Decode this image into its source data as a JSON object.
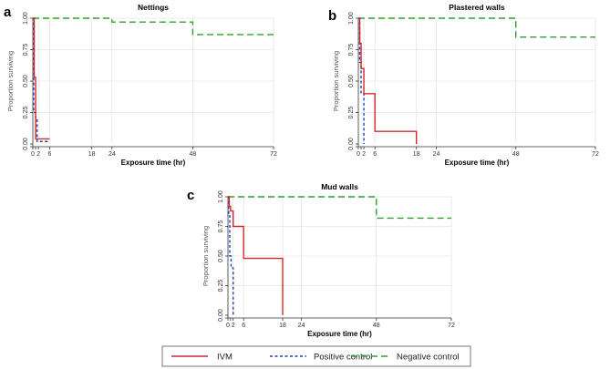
{
  "chart_data": [
    {
      "panel_letter": "a",
      "type": "line",
      "title": "Nettings",
      "xlabel": "Exposure time (hr)",
      "ylabel": "Proportion surviving",
      "xlim": [
        0,
        72
      ],
      "ylim": [
        0,
        1
      ],
      "x_ticks": [
        0,
        1,
        2,
        6,
        18,
        24,
        48,
        72
      ],
      "x_tick_labels": [
        "0",
        "",
        "2",
        "6",
        "18",
        "24",
        "48",
        "72"
      ],
      "y_ticks": [
        "0.00",
        "0.25",
        "0.50",
        "0.75",
        "1.00"
      ],
      "grid": true,
      "series": [
        {
          "name": "IVM",
          "color": "#d62728",
          "dash": "solid",
          "x": [
            0,
            0.5,
            0.5,
            1,
            1,
            6
          ],
          "y": [
            1,
            1,
            0.53,
            0.53,
            0.04,
            0.04
          ]
        },
        {
          "name": "Positive control",
          "color": "#1f3fbf",
          "dash": "dashed",
          "x": [
            0,
            0.3,
            0.3,
            1,
            1,
            1.5,
            1.5,
            6
          ],
          "y": [
            1,
            1,
            0.25,
            0.25,
            0.2,
            0.2,
            0.02,
            0.02
          ]
        },
        {
          "name": "Negative control",
          "color": "#2ca02c",
          "dash": "longdash",
          "x": [
            0,
            24,
            24,
            48,
            48,
            72
          ],
          "y": [
            1,
            1,
            0.97,
            0.97,
            0.87,
            0.87
          ]
        }
      ]
    },
    {
      "panel_letter": "b",
      "type": "line",
      "title": "Plastered walls",
      "xlabel": "Exposure time (hr)",
      "ylabel": "Proportion surviving",
      "xlim": [
        0,
        72
      ],
      "ylim": [
        0,
        1
      ],
      "x_ticks": [
        0,
        1,
        2,
        6,
        18,
        24,
        48,
        72
      ],
      "x_tick_labels": [
        "0",
        "",
        "2",
        "6",
        "18",
        "24",
        "48",
        "72"
      ],
      "y_ticks": [
        "0.00",
        "0.25",
        "0.50",
        "0.75",
        "1.00"
      ],
      "grid": true,
      "series": [
        {
          "name": "IVM",
          "color": "#d62728",
          "dash": "solid",
          "x": [
            0,
            0.5,
            0.5,
            1,
            1,
            2,
            2,
            6,
            6,
            18,
            18
          ],
          "y": [
            1,
            1,
            0.8,
            0.8,
            0.6,
            0.6,
            0.4,
            0.4,
            0.1,
            0.1,
            0
          ]
        },
        {
          "name": "Positive control",
          "color": "#1f3fbf",
          "dash": "dashed",
          "x": [
            0,
            0.5,
            0.5,
            1,
            1,
            2,
            2
          ],
          "y": [
            1,
            1,
            0.65,
            0.65,
            0.4,
            0.4,
            0
          ]
        },
        {
          "name": "Negative control",
          "color": "#2ca02c",
          "dash": "longdash",
          "x": [
            0,
            48,
            48,
            72
          ],
          "y": [
            1,
            1,
            0.85,
            0.85
          ]
        }
      ]
    },
    {
      "panel_letter": "c",
      "type": "line",
      "title": "Mud walls",
      "xlabel": "Exposure time (hr)",
      "ylabel": "Proportion surviving",
      "xlim": [
        0,
        72
      ],
      "ylim": [
        0,
        1
      ],
      "x_ticks": [
        0,
        1,
        2,
        6,
        18,
        24,
        48,
        72
      ],
      "x_tick_labels": [
        "0",
        "",
        "2",
        "6",
        "18",
        "24",
        "48",
        "72"
      ],
      "y_ticks": [
        "0.00",
        "0.25",
        "0.50",
        "0.75",
        "1.00"
      ],
      "grid": true,
      "series": [
        {
          "name": "IVM",
          "color": "#d62728",
          "dash": "solid",
          "x": [
            0,
            0.5,
            0.5,
            1,
            1,
            2,
            2,
            6,
            6,
            18,
            18
          ],
          "y": [
            1,
            1,
            0.92,
            0.92,
            0.88,
            0.88,
            0.75,
            0.75,
            0.48,
            0.48,
            0
          ]
        },
        {
          "name": "Positive control",
          "color": "#1f3fbf",
          "dash": "dashed",
          "x": [
            0,
            0.3,
            0.3,
            0.7,
            0.7,
            1.2,
            1.2,
            2,
            2
          ],
          "y": [
            1,
            1,
            0.85,
            0.85,
            0.5,
            0.5,
            0.4,
            0.4,
            0
          ]
        },
        {
          "name": "Negative control",
          "color": "#2ca02c",
          "dash": "longdash",
          "x": [
            0,
            48,
            48,
            72
          ],
          "y": [
            1,
            1,
            0.82,
            0.82
          ]
        }
      ]
    }
  ],
  "legend": {
    "placement": "bottom",
    "items": [
      {
        "label": "IVM",
        "color": "#d62728",
        "dash": "solid"
      },
      {
        "label": "Positive control",
        "color": "#1f3fbf",
        "dash": "dashed"
      },
      {
        "label": "Negative control",
        "color": "#2ca02c",
        "dash": "longdash"
      }
    ]
  }
}
